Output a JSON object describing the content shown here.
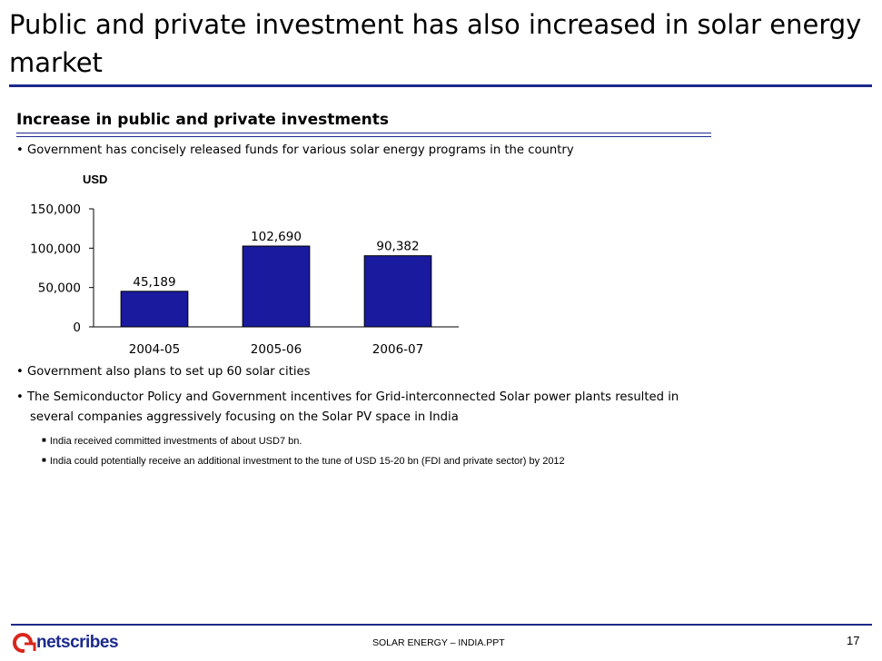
{
  "slide": {
    "title": "Public and private investment has also increased in solar energy market",
    "section_heading": "Increase in public and private investments",
    "bullet_intro": "• Government has concisely released funds for various solar energy programs in the country",
    "unit_label": "USD",
    "bullets": [
      "• Government also plans to set up 60 solar cities",
      "• The Semiconductor Policy and Government incentives for Grid-interconnected Solar power plants resulted in",
      "several companies aggressively focusing on the Solar PV space in India"
    ],
    "sub_bullets": [
      "India received committed investments of about USD7 bn.",
      "India could potentially receive an additional investment to the tune of USD 15-20 bn (FDI and private sector) by 2012"
    ],
    "sub_bullet_marker": "■",
    "footer": {
      "logo_text": "netscribes",
      "center_text": "SOLAR ENERGY – INDIA.PPT",
      "page_number": "17"
    }
  },
  "colors": {
    "accent": "#1c2a8c",
    "bar_fill": "#1a1a9e",
    "logo_red": "#d9261c"
  },
  "chart_data": {
    "type": "bar",
    "categories": [
      "2004-05",
      "2005-06",
      "2006-07"
    ],
    "values": [
      45189,
      102690,
      90382
    ],
    "data_labels": [
      "45,189",
      "102,690",
      "90,382"
    ],
    "ylabel": "USD",
    "ylim": [
      0,
      150000
    ],
    "y_ticks": [
      0,
      50000,
      100000,
      150000
    ],
    "y_tick_labels": [
      "0",
      "50,000",
      "100,000",
      "150,000"
    ],
    "grid": false,
    "legend": "none"
  }
}
